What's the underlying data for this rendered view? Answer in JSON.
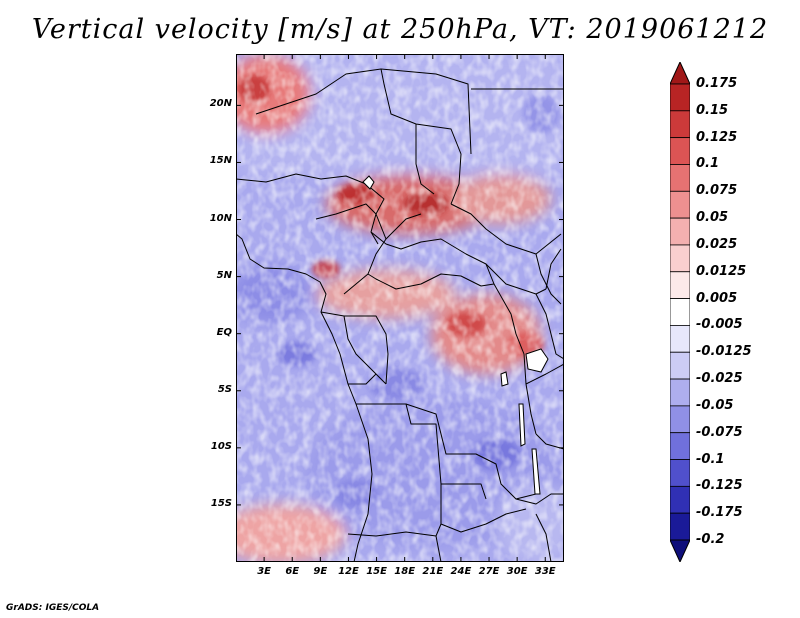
{
  "title": "Vertical velocity [m/s] at 250hPa, VT: 2019061212",
  "credit": "GrADS: IGES/COLA",
  "map": {
    "variable": "vertical velocity",
    "units": "m/s",
    "level": "250hPa",
    "lon_range": [
      0,
      35
    ],
    "lat_range": [
      -20,
      24.5
    ],
    "lat_ticks": [
      {
        "value": 20,
        "label": "20N"
      },
      {
        "value": 15,
        "label": "15N"
      },
      {
        "value": 10,
        "label": "10N"
      },
      {
        "value": 5,
        "label": "5N"
      },
      {
        "value": 0,
        "label": "EQ"
      },
      {
        "value": -5,
        "label": "5S"
      },
      {
        "value": -10,
        "label": "10S"
      },
      {
        "value": -15,
        "label": "15S"
      }
    ],
    "lon_ticks": [
      {
        "value": 3,
        "label": "3E"
      },
      {
        "value": 6,
        "label": "6E"
      },
      {
        "value": 9,
        "label": "9E"
      },
      {
        "value": 12,
        "label": "12E"
      },
      {
        "value": 15,
        "label": "15E"
      },
      {
        "value": 18,
        "label": "18E"
      },
      {
        "value": 21,
        "label": "21E"
      },
      {
        "value": 24,
        "label": "24E"
      },
      {
        "value": 27,
        "label": "27E"
      },
      {
        "value": 30,
        "label": "30E"
      },
      {
        "value": 33,
        "label": "33E"
      }
    ]
  },
  "colorbar": {
    "labels": [
      "0.175",
      "0.15",
      "0.125",
      "0.1",
      "0.075",
      "0.05",
      "0.025",
      "0.0125",
      "0.005",
      "-0.005",
      "-0.0125",
      "-0.025",
      "-0.05",
      "-0.075",
      "-0.1",
      "-0.125",
      "-0.175",
      "-0.2"
    ],
    "colors": [
      "#a01818",
      "#b82424",
      "#cc3a3a",
      "#dc5454",
      "#e67272",
      "#ee9090",
      "#f4b0b0",
      "#f9cfcf",
      "#fce9e9",
      "#ffffff",
      "#e7e7fb",
      "#ccccf5",
      "#aeaeee",
      "#9090e6",
      "#7070dc",
      "#5050cc",
      "#3030b4",
      "#1a1a98",
      "#0e0e7a"
    ]
  }
}
